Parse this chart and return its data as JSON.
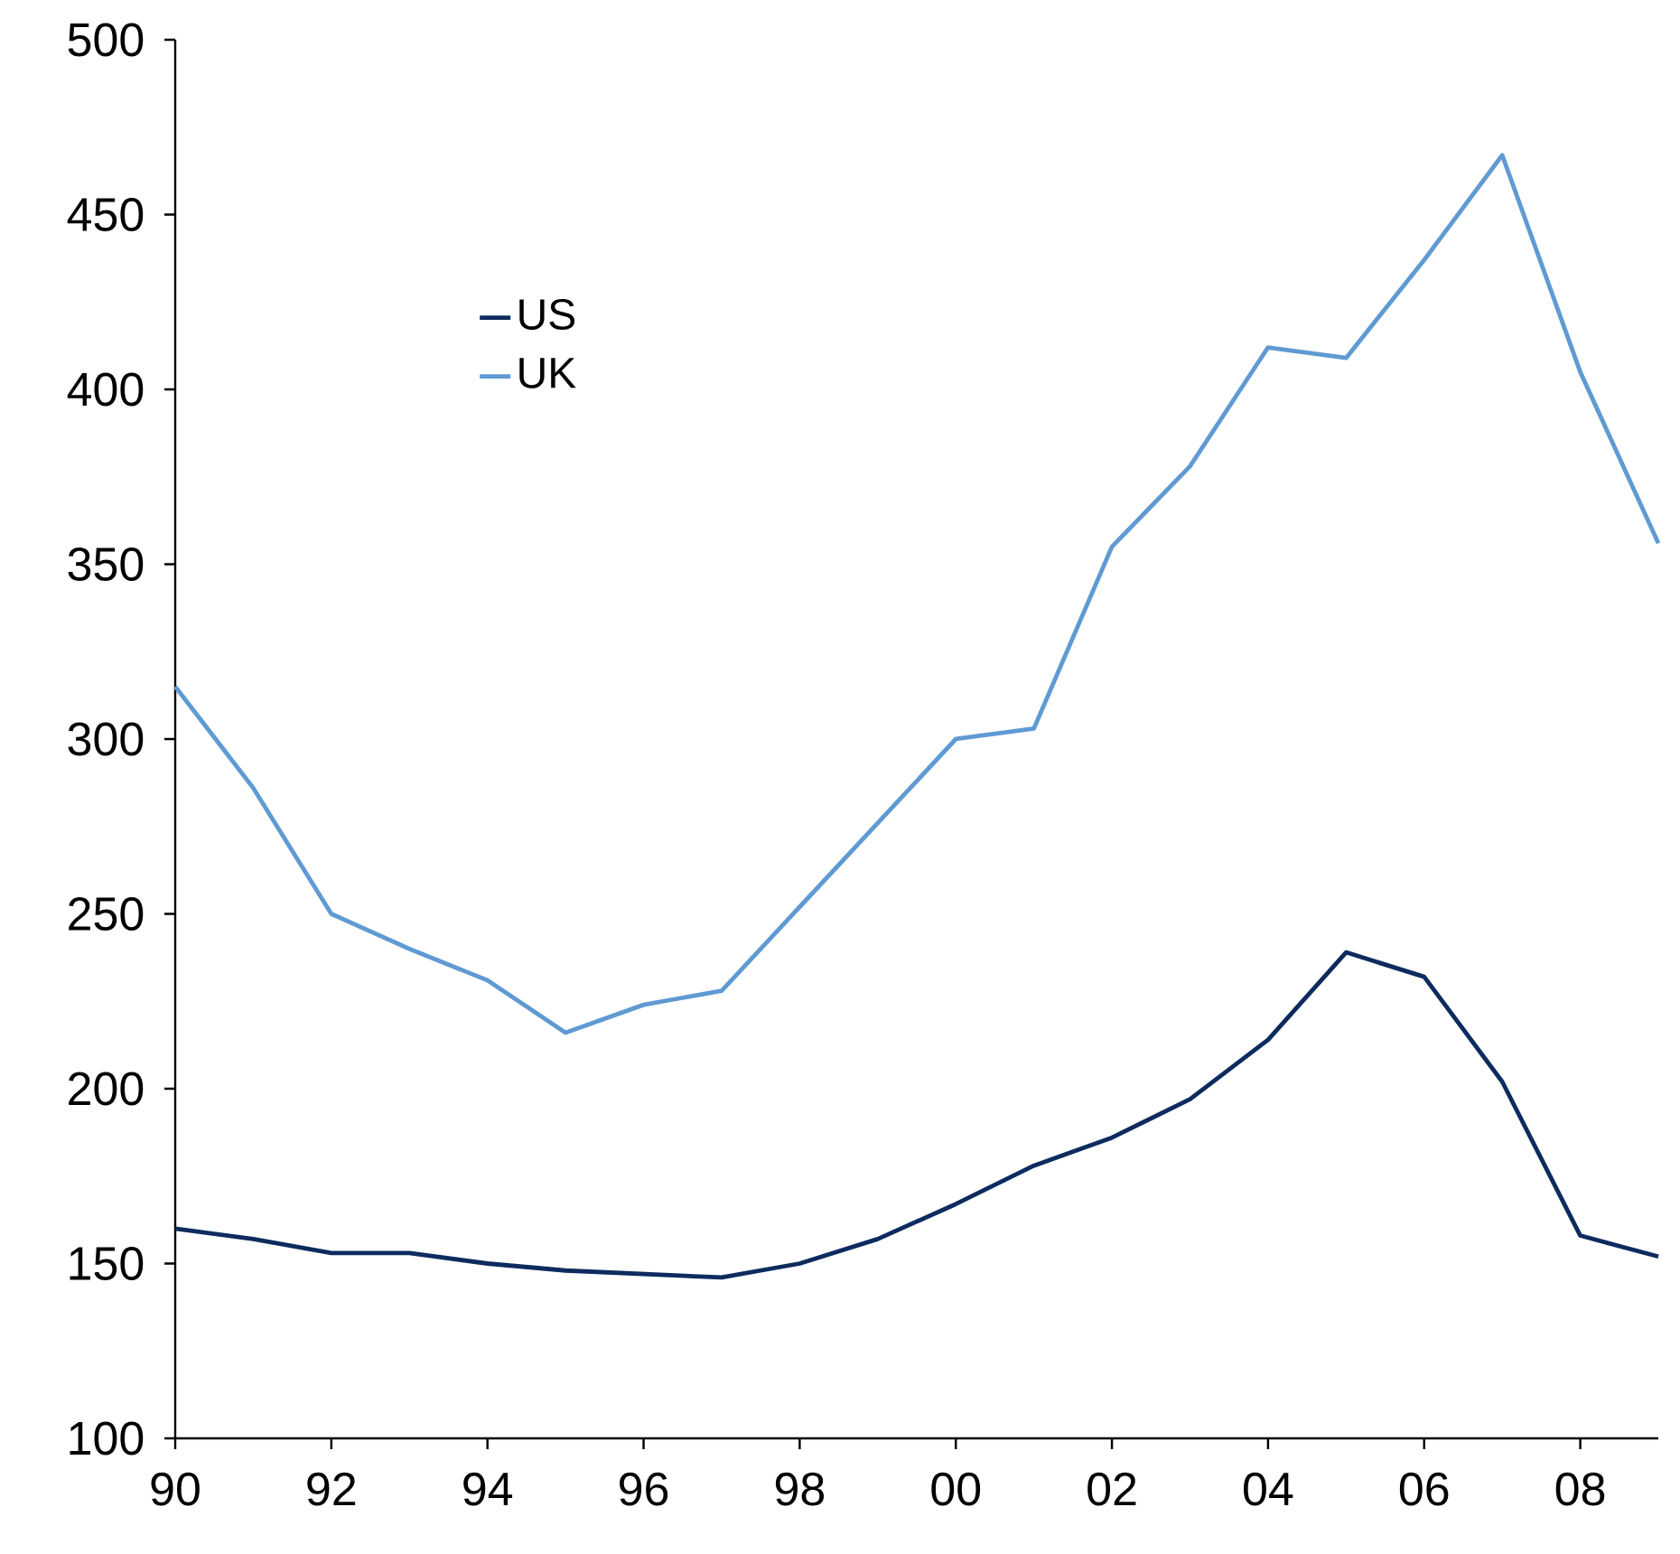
{
  "chart_data": {
    "type": "line",
    "x": [
      1990,
      1991,
      1992,
      1993,
      1994,
      1995,
      1996,
      1997,
      1998,
      1999,
      2000,
      2001,
      2002,
      2003,
      2004,
      2005,
      2006,
      2007,
      2008,
      2009
    ],
    "series": [
      {
        "name": "US",
        "color": "#0d2b5e",
        "values": [
          160,
          157,
          153,
          153,
          150,
          148,
          147,
          146,
          150,
          157,
          167,
          178,
          186,
          197,
          214,
          239,
          232,
          202,
          158,
          152
        ]
      },
      {
        "name": "UK",
        "color": "#5f9ad3",
        "values": [
          315,
          286,
          250,
          240,
          231,
          216,
          224,
          228,
          252,
          276,
          300,
          303,
          355,
          378,
          412,
          409,
          437,
          467,
          405,
          356
        ]
      }
    ],
    "xlim": [
      1990,
      2009
    ],
    "ylim": [
      100,
      500
    ],
    "xticks": [
      {
        "value": 1990,
        "label": "90"
      },
      {
        "value": 1992,
        "label": "92"
      },
      {
        "value": 1994,
        "label": "94"
      },
      {
        "value": 1996,
        "label": "96"
      },
      {
        "value": 1998,
        "label": "98"
      },
      {
        "value": 2000,
        "label": "00"
      },
      {
        "value": 2002,
        "label": "02"
      },
      {
        "value": 2004,
        "label": "04"
      },
      {
        "value": 2006,
        "label": "06"
      },
      {
        "value": 2008,
        "label": "08"
      }
    ],
    "yticks": [
      100,
      150,
      200,
      250,
      300,
      350,
      400,
      450,
      500
    ],
    "legend": "top left",
    "grid": false
  }
}
